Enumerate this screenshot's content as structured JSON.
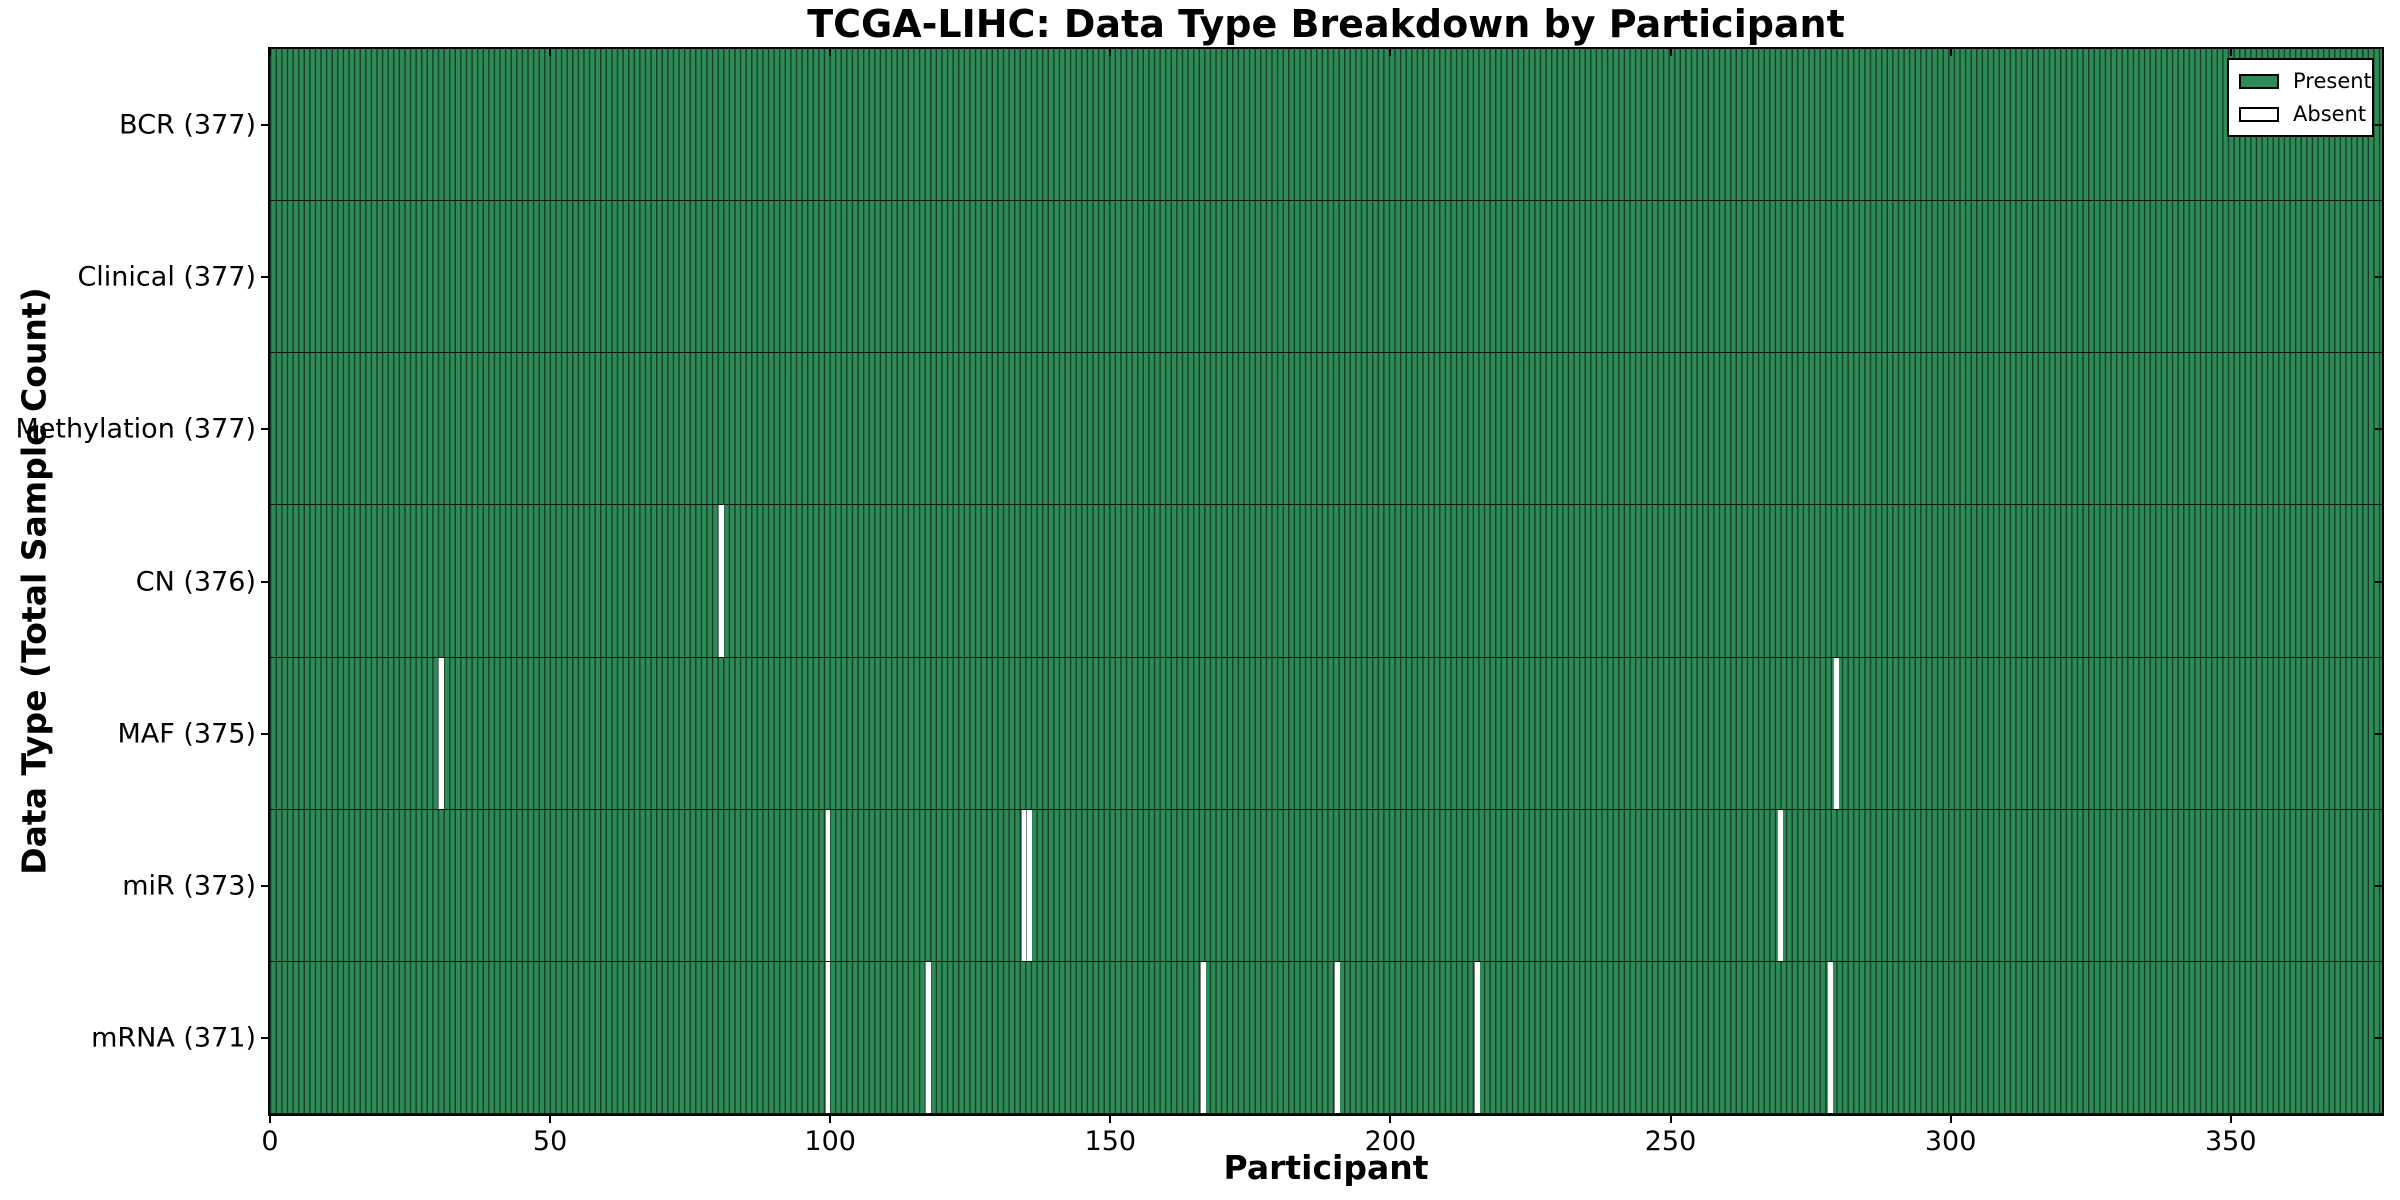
{
  "figure": {
    "background": "#FFFFFF"
  },
  "chart_data": {
    "type": "heatmap",
    "title": "TCGA-LIHC: Data Type Breakdown by Participant",
    "xlabel": "Participant",
    "ylabel": "Data Type (Total Sample Count)",
    "x_range": [
      0,
      377
    ],
    "n_participants": 377,
    "xticks": [
      0,
      50,
      100,
      150,
      200,
      250,
      300,
      350
    ],
    "grid": false,
    "legend_position": "upper right",
    "legend": [
      {
        "label": "Present",
        "color": "#2E8B57"
      },
      {
        "label": "Absent",
        "color": "#FFFFFF"
      }
    ],
    "rows": [
      {
        "label": "BCR (377)",
        "data_type": "BCR",
        "total_samples": 377,
        "absent_participants": []
      },
      {
        "label": "Clinical (377)",
        "data_type": "Clinical",
        "total_samples": 377,
        "absent_participants": []
      },
      {
        "label": "Methylation (377)",
        "data_type": "Methylation",
        "total_samples": 377,
        "absent_participants": []
      },
      {
        "label": "CN (376)",
        "data_type": "CN",
        "total_samples": 376,
        "absent_participants": [
          80
        ]
      },
      {
        "label": "MAF (375)",
        "data_type": "MAF",
        "total_samples": 375,
        "absent_participants": [
          30,
          279
        ]
      },
      {
        "label": "miR (373)",
        "data_type": "miR",
        "total_samples": 373,
        "absent_participants": [
          99,
          134,
          135,
          269
        ]
      },
      {
        "label": "mRNA (371)",
        "data_type": "mRNA",
        "total_samples": 371,
        "absent_participants": [
          99,
          117,
          166,
          190,
          215,
          278
        ]
      }
    ],
    "colors": {
      "present": "#2E8B57",
      "absent": "#FFFFFF",
      "bar_edge": "#000000",
      "text": "#000000",
      "plot_border": "#000000"
    }
  }
}
